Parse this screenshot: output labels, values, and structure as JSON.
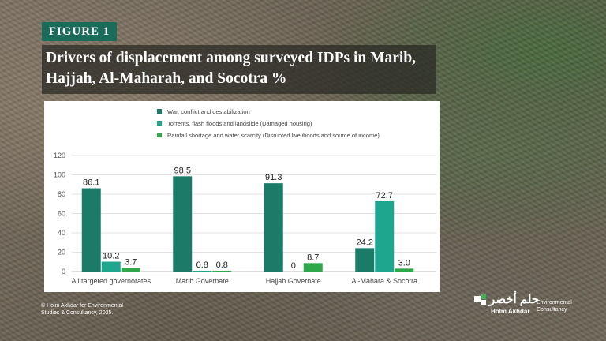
{
  "figure_label": "FIGURE 1",
  "title_line1": "Drivers of displacement among surveyed IDPs in Marib,",
  "title_line2": "Hajjah, Al-Maharah, and Socotra %",
  "copyright_line1": "© Holm Akhdar for Environmental",
  "copyright_line2": "Studies & Consultancy, 2025.",
  "logo": {
    "arabic": "حلم أخضر",
    "english": "Holm Akhdar",
    "sub_line1": "Environmental",
    "sub_line2": "Consultancy"
  },
  "chart_data": {
    "type": "bar",
    "categories": [
      "All targeted governorates",
      "Marib Governate",
      "Hajjah Governate",
      "Al-Mahara & Socotra"
    ],
    "series": [
      {
        "name": "War, conflict and destabilization",
        "color": "#1c7a68",
        "values": [
          86.1,
          98.5,
          91.3,
          24.2
        ],
        "labels": [
          "86.1",
          "98.5",
          "91.3",
          "24.2"
        ]
      },
      {
        "name": "Torrents, flash floods and landslide (Damaged housing)",
        "color": "#1fa68f",
        "values": [
          10.2,
          0.8,
          0,
          72.7
        ],
        "labels": [
          "10.2",
          "0.8",
          "0",
          "72.7"
        ]
      },
      {
        "name": "Rainfall shortage and water scarcity (Disrupted livelihoods and source of income)",
        "color": "#2ea84a",
        "values": [
          3.7,
          0.8,
          8.7,
          3.0
        ],
        "labels": [
          "3.7",
          "0.8",
          "8.7",
          "3.0"
        ]
      }
    ],
    "yticks": [
      "0",
      "20",
      "40",
      "60",
      "80",
      "100",
      "120"
    ],
    "ylim": [
      0,
      120
    ],
    "grid": true,
    "legend": "top"
  }
}
